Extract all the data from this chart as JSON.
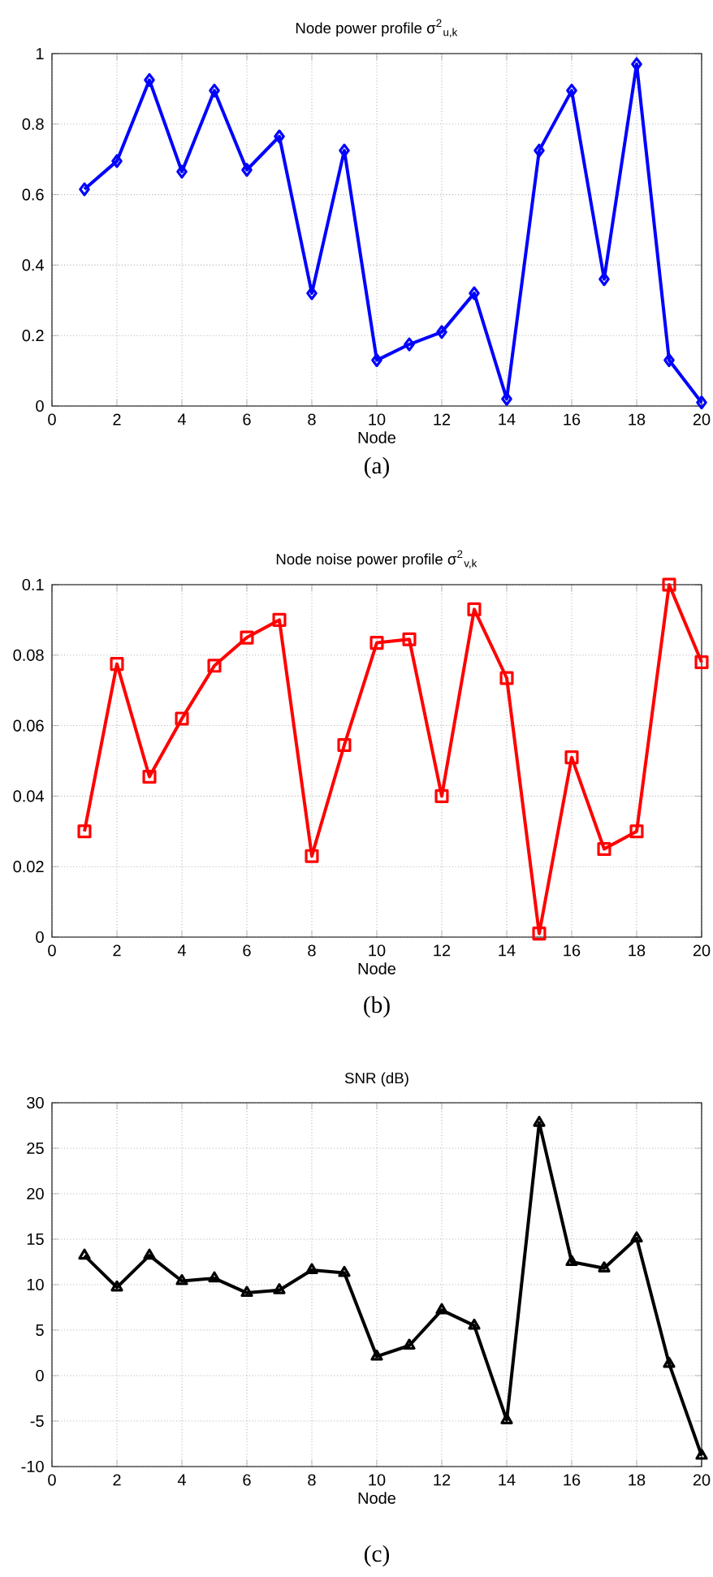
{
  "chart_data": [
    {
      "type": "line",
      "title": "Node power profile σ$^{2}$$_{u,k}$",
      "xlabel": "Node",
      "annotations": [
        "(a)"
      ],
      "x": [
        1,
        2,
        3,
        4,
        5,
        6,
        7,
        8,
        9,
        10,
        11,
        12,
        13,
        14,
        15,
        16,
        17,
        18,
        19,
        20
      ],
      "values": [
        0.615,
        0.695,
        0.925,
        0.665,
        0.895,
        0.67,
        0.765,
        0.32,
        0.725,
        0.13,
        0.175,
        0.21,
        0.32,
        0.02,
        0.725,
        0.895,
        0.36,
        0.97,
        0.13,
        0.01
      ],
      "color": "#0000ff",
      "marker": "diamond",
      "line_style": "solid",
      "grid": true,
      "xlim": [
        0,
        20
      ],
      "xticks": [
        0,
        2,
        4,
        6,
        8,
        10,
        12,
        14,
        16,
        18,
        20
      ],
      "ylim": [
        0,
        1
      ],
      "yticks": [
        0,
        0.2,
        0.4,
        0.6,
        0.8,
        1
      ]
    },
    {
      "type": "line",
      "title": "Node noise power profile  σ$^{2}$$_{v,k}$",
      "xlabel": "Node",
      "annotations": [
        "(b)"
      ],
      "x": [
        1,
        2,
        3,
        4,
        5,
        6,
        7,
        8,
        9,
        10,
        11,
        12,
        13,
        14,
        15,
        16,
        17,
        18,
        19,
        20
      ],
      "values": [
        0.03,
        0.0775,
        0.0455,
        0.062,
        0.077,
        0.085,
        0.09,
        0.023,
        0.0545,
        0.0835,
        0.0845,
        0.04,
        0.093,
        0.0735,
        0.001,
        0.051,
        0.025,
        0.03,
        0.1,
        0.078
      ],
      "color": "#ff0000",
      "marker": "square",
      "line_style": "solid",
      "grid": true,
      "xlim": [
        0,
        20
      ],
      "xticks": [
        0,
        2,
        4,
        6,
        8,
        10,
        12,
        14,
        16,
        18,
        20
      ],
      "ylim": [
        0,
        0.1
      ],
      "yticks": [
        0,
        0.02,
        0.04,
        0.06,
        0.08,
        0.1
      ]
    },
    {
      "type": "line",
      "title": "SNR (dB)",
      "xlabel": "Node",
      "annotations": [
        "(c)"
      ],
      "x": [
        1,
        2,
        3,
        4,
        5,
        6,
        7,
        8,
        9,
        10,
        11,
        12,
        13,
        14,
        15,
        16,
        17,
        18,
        19,
        20
      ],
      "values": [
        13.2,
        9.7,
        13.2,
        10.4,
        10.7,
        9.1,
        9.4,
        11.6,
        11.3,
        2.1,
        3.3,
        7.2,
        5.5,
        -4.9,
        27.8,
        12.5,
        11.8,
        15.1,
        1.3,
        -8.8
      ],
      "color": "#000000",
      "marker": "triangle",
      "line_style": "solid",
      "grid": true,
      "xlim": [
        0,
        20
      ],
      "xticks": [
        0,
        2,
        4,
        6,
        8,
        10,
        12,
        14,
        16,
        18,
        20
      ],
      "ylim": [
        -10,
        30
      ],
      "yticks": [
        -10,
        -5,
        0,
        5,
        10,
        15,
        20,
        25,
        30
      ]
    }
  ]
}
